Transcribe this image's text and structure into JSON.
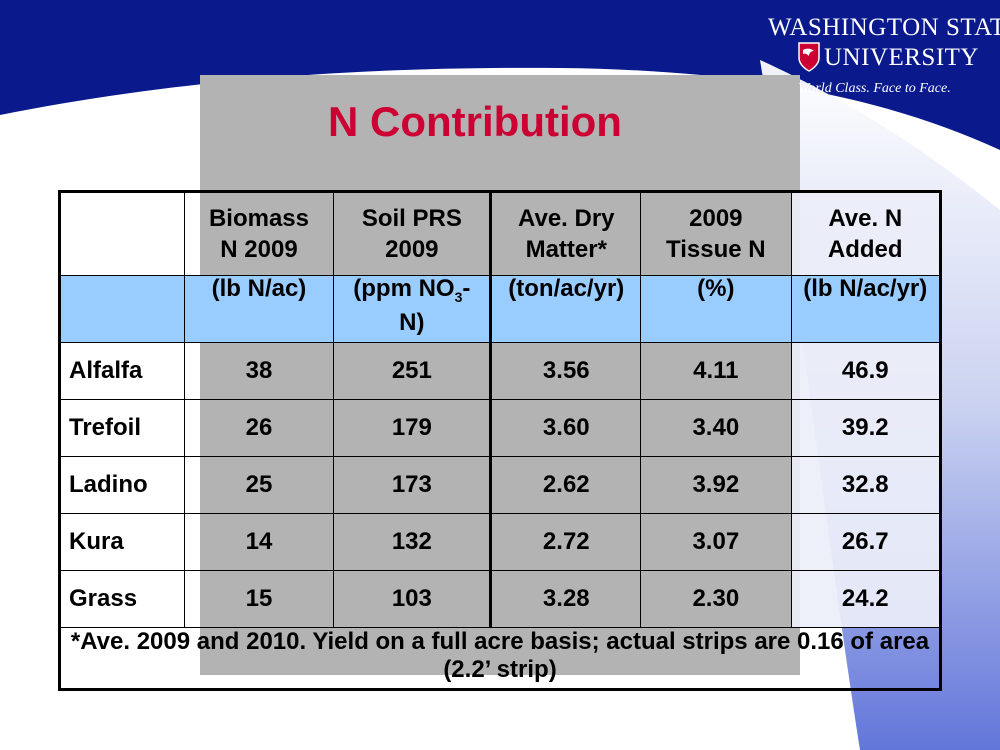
{
  "title": "N Contribution",
  "logo": {
    "line1": "WASHINGTON STATE",
    "line2": "UNIVERSITY",
    "tagline": "World Class. Face to Face.",
    "icon": "wsu-crest-icon"
  },
  "colors": {
    "title_red": "#cc0033",
    "header_blue": "#99ccff",
    "banner_navy": "#0a1a8c",
    "panel_gray": "#b3b3b3"
  },
  "table": {
    "headers": [
      "",
      "Biomass N 2009",
      "Soil PRS 2009",
      "Ave. Dry Matter*",
      "2009 Tissue N",
      "Ave. N Added"
    ],
    "headers_lines": [
      [
        "",
        ""
      ],
      [
        "Biomass",
        "N 2009"
      ],
      [
        "Soil PRS",
        "2009"
      ],
      [
        "Ave. Dry",
        "Matter*"
      ],
      [
        "2009",
        "Tissue N"
      ],
      [
        "Ave. N",
        "Added"
      ]
    ],
    "units": {
      "biomass": "(lb N/ac)",
      "soil_pre": "(ppm NO",
      "soil_sub": "3",
      "soil_post": "-",
      "soil_line2": "N)",
      "dry_matter": "(ton/ac/yr)",
      "tissue": "(%)",
      "added": "(lb N/ac/yr)"
    },
    "rows": [
      {
        "name": "Alfalfa",
        "biomass": "38",
        "soil": "251",
        "dry": "3.56",
        "tissue": "4.11",
        "added": "46.9"
      },
      {
        "name": "Trefoil",
        "biomass": "26",
        "soil": "179",
        "dry": "3.60",
        "tissue": "3.40",
        "added": "39.2"
      },
      {
        "name": "Ladino",
        "biomass": "25",
        "soil": "173",
        "dry": "2.62",
        "tissue": "3.92",
        "added": "32.8"
      },
      {
        "name": "Kura",
        "biomass": "14",
        "soil": "132",
        "dry": "2.72",
        "tissue": "3.07",
        "added": "26.7"
      },
      {
        "name": "Grass",
        "biomass": "15",
        "soil": "103",
        "dry": "3.28",
        "tissue": "2.30",
        "added": "24.2"
      }
    ],
    "footnote": "*Ave. 2009 and 2010. Yield on a full acre basis; actual strips are 0.16 of area (2.2’ strip)"
  }
}
